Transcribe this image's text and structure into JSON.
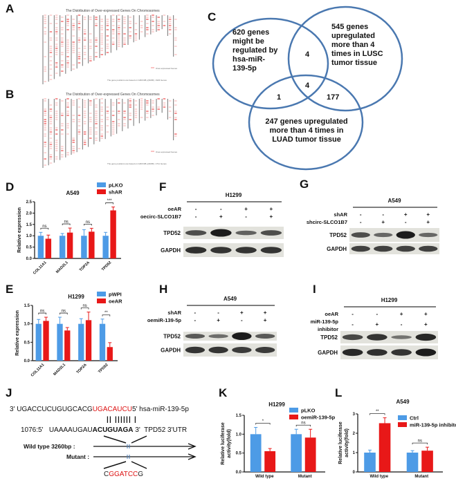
{
  "panels": {
    "A": {
      "label": "A",
      "title": "The Distribution of Over-expressed Genes On Chromosomes",
      "legend": "Over-expressed Genes",
      "footnote": "The gene positions are based on GRCh38.p(NCBI). 1923 Genes"
    },
    "B": {
      "label": "B",
      "title": "The Distribution of Over-expressed Genes On Chromosomes",
      "legend": "Over-expressed Genes",
      "footnote": "The gene positions are based on GRCh38.p(NCBI). 1711 Genes"
    },
    "C": {
      "label": "C",
      "set1": [
        "620 genes",
        "might be",
        "regulated by",
        "hsa-miR-",
        "139-5p"
      ],
      "set2": [
        "545 genes",
        "upregulated",
        "more than 4",
        "times in LUSC",
        "tumor tissue"
      ],
      "set3": [
        "247 genes upregulated",
        "more than 4 times in",
        "LUAD tumor tissue"
      ],
      "n12": "4",
      "n123": "4",
      "n13": "1",
      "n23": "177"
    },
    "F": {
      "label": "F",
      "cell": "H1299",
      "rows": [
        {
          "name": "oeAR",
          "signs": [
            "-",
            "-",
            "+",
            "+"
          ]
        },
        {
          "name": "oecirc-SLCO1B7",
          "signs": [
            "-",
            "+",
            "-",
            "+"
          ]
        }
      ],
      "bands": [
        {
          "name": "TPD52",
          "intensity": [
            0.6,
            1.0,
            0.45,
            0.6
          ]
        },
        {
          "name": "GAPDH",
          "intensity": [
            0.85,
            0.8,
            0.8,
            0.8
          ]
        }
      ]
    },
    "G": {
      "label": "G",
      "cell": "A549",
      "rows": [
        {
          "name": "shAR",
          "signs": [
            "-",
            "-",
            "+",
            "+"
          ]
        },
        {
          "name": "shcirc-SLCO1B7",
          "signs": [
            "-",
            "+",
            "-",
            "+"
          ]
        }
      ],
      "bands": [
        {
          "name": "TPD52",
          "intensity": [
            0.6,
            0.4,
            1.0,
            0.4
          ]
        },
        {
          "name": "GAPDH",
          "intensity": [
            0.7,
            0.7,
            0.7,
            0.7
          ]
        }
      ]
    },
    "H": {
      "label": "H",
      "cell": "A549",
      "rows": [
        {
          "name": "shAR",
          "signs": [
            "-",
            "-",
            "+",
            "+"
          ]
        },
        {
          "name": "oemiR-139-5p",
          "signs": [
            "-",
            "+",
            "-",
            "+"
          ]
        }
      ],
      "bands": [
        {
          "name": "TPD52",
          "intensity": [
            0.5,
            0.35,
            1.0,
            0.5
          ]
        },
        {
          "name": "GAPDH",
          "intensity": [
            0.8,
            0.8,
            0.75,
            0.75
          ]
        }
      ]
    },
    "I": {
      "label": "I",
      "cell": "H1299",
      "rows": [
        {
          "name": "oeAR",
          "signs": [
            "-",
            "-",
            "+",
            "+"
          ]
        },
        {
          "name": "miR-139-5p",
          "signs": [
            "-",
            "+",
            "-",
            "+"
          ]
        },
        {
          "name": "inhibitor",
          "signs": []
        }
      ],
      "bands": [
        {
          "name": "TPD52",
          "intensity": [
            0.65,
            0.8,
            0.3,
            0.9
          ]
        },
        {
          "name": "GAPDH",
          "intensity": [
            0.9,
            0.85,
            0.8,
            1.0
          ]
        }
      ]
    },
    "J": {
      "label": "J",
      "mir_prefix": "3' UGACCUCUGUGCACG",
      "mir_seed": "UGACAUCU",
      "mir_suffix": "5' hsa-miR-139-5p",
      "pairs": "|| ||||||  |",
      "utr_prefix": "1076:5'   UAAAAUGAU",
      "utr_site": "ACUGUAGA",
      "utr_suffix": " 3'  TPD52 3'UTR",
      "wild": "Wild type 3260bp :",
      "mutant": "Mutant :",
      "mut_seq": [
        {
          "t": "C",
          "c": "#1a1a1a"
        },
        {
          "t": "GGATCC",
          "c": "#d11"
        },
        {
          "t": "G",
          "c": "#1a1a1a"
        }
      ]
    },
    "D": {
      "label": "D"
    },
    "E": {
      "label": "E"
    },
    "K": {
      "label": "K"
    },
    "L": {
      "label": "L"
    }
  },
  "colors": {
    "blue": "#4d9be6",
    "red": "#e81818",
    "venn": "#4a78b0"
  },
  "chart_data": [
    {
      "id": "D",
      "type": "bar",
      "title": "A549",
      "ylabel": "Relative expression",
      "ylim": [
        0,
        2.5
      ],
      "yticks": [
        "0.0",
        "0.5",
        "1.0",
        "1.5",
        "2.0",
        "2.5"
      ],
      "categories": [
        "COL11A1",
        "MAD2L1",
        "TOP2A",
        "TPD52"
      ],
      "series": [
        {
          "name": "pLKO",
          "values": [
            1.0,
            1.0,
            1.0,
            1.0
          ],
          "errors": [
            0.15,
            0.1,
            0.27,
            0.15
          ]
        },
        {
          "name": "shAR",
          "values": [
            0.87,
            1.14,
            1.18,
            2.12
          ],
          "errors": [
            0.16,
            0.2,
            0.15,
            0.15
          ]
        }
      ],
      "significance": [
        "ns",
        "ns",
        "ns",
        "***"
      ],
      "legend": "top-right",
      "grid": false,
      "rotate_labels": true
    },
    {
      "id": "E",
      "type": "bar",
      "title": "H1299",
      "ylabel": "Relative expression",
      "ylim": [
        0,
        1.5
      ],
      "yticks": [
        "0.0",
        "0.5",
        "1.0",
        "1.5"
      ],
      "categories": [
        "COL11A1",
        "MAD2L1",
        "TOP2A",
        "TPD52"
      ],
      "series": [
        {
          "name": "pWPI",
          "values": [
            1.0,
            1.0,
            1.0,
            1.0
          ],
          "errors": [
            0.12,
            0.18,
            0.14,
            0.13
          ]
        },
        {
          "name": "oeAR",
          "values": [
            1.08,
            0.82,
            1.1,
            0.37
          ],
          "errors": [
            0.1,
            0.08,
            0.22,
            0.12
          ]
        }
      ],
      "significance": [
        "ns",
        "ns",
        "ns",
        "**"
      ],
      "legend": "top-right",
      "grid": false,
      "rotate_labels": true
    },
    {
      "id": "K",
      "type": "bar",
      "title": "H1299",
      "ylabel": "Relative luciferase activity(fold)",
      "ylim": [
        0,
        1.5
      ],
      "yticks": [
        "0.0",
        "0.5",
        "1.0",
        "1.5"
      ],
      "categories": [
        "Wild type",
        "Mutant"
      ],
      "series": [
        {
          "name": "pLKO",
          "values": [
            1.0,
            1.0
          ],
          "errors": [
            0.18,
            0.13
          ]
        },
        {
          "name": "oemiR-139-5p",
          "values": [
            0.55,
            0.91
          ],
          "errors": [
            0.07,
            0.22
          ]
        }
      ],
      "significance": [
        "*",
        "ns"
      ],
      "legend": "top-right",
      "grid": false,
      "rotate_labels": false
    },
    {
      "id": "L",
      "type": "bar",
      "title": "A549",
      "ylabel": "Relative luciferase activity(fold)",
      "ylim": [
        0,
        3
      ],
      "yticks": [
        "0",
        "1",
        "2",
        "3"
      ],
      "categories": [
        "Wild type",
        "Mutant"
      ],
      "series": [
        {
          "name": "Ctrl",
          "values": [
            1.0,
            1.0
          ],
          "errors": [
            0.13,
            0.1
          ]
        },
        {
          "name": "miR-139-5p inhibitor",
          "values": [
            2.52,
            1.1
          ],
          "errors": [
            0.28,
            0.18
          ]
        }
      ],
      "significance": [
        "**",
        "ns"
      ],
      "legend": "top-right",
      "grid": false,
      "rotate_labels": false
    }
  ]
}
